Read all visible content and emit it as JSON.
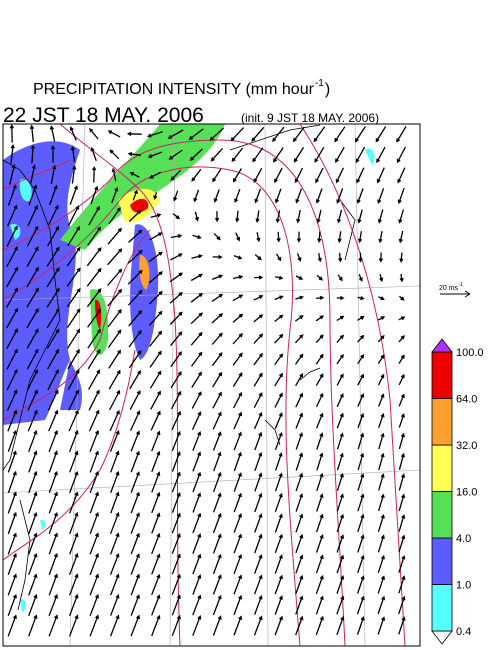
{
  "title": {
    "text": "PRECIPITATION INTENSITY (mm hour",
    "superscript": "-1",
    "close": ")"
  },
  "valid_time": "22 JST 18 MAY. 2006",
  "init_time": "(init. 9 JST 18 MAY. 2006)",
  "wind_scale": {
    "text": "20 ms",
    "superscript": "-1"
  },
  "colorbar": {
    "labels": [
      "0.4",
      "1.0",
      "4.0",
      "16.0",
      "32.0",
      "64.0",
      "100.0"
    ],
    "colors": [
      "#ffffff",
      "#55ffff",
      "#5c5cff",
      "#55e055",
      "#ffff55",
      "#ff9f30",
      "#ee0000",
      "#aa33ff"
    ]
  }
}
